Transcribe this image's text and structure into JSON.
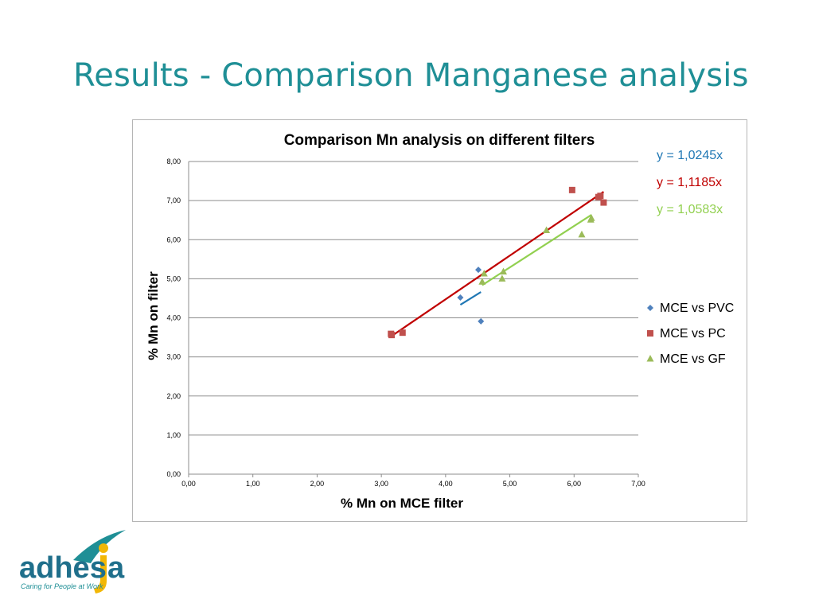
{
  "slide": {
    "title": "Results - Comparison Manganese analysis"
  },
  "colors": {
    "title": "#1f8f96",
    "series": [
      "#4f81bd",
      "#c0504d",
      "#9bbb59"
    ],
    "trendlines": [
      "#1f77b4",
      "#c00000",
      "#92d050"
    ],
    "equations": [
      "#1f77b4",
      "#c00000",
      "#92d050"
    ]
  },
  "chart_data": {
    "type": "scatter",
    "title": "Comparison Mn analysis on different filters",
    "xlabel": "% Mn on MCE filter",
    "ylabel": "% Mn on filter",
    "xlim": [
      0,
      7
    ],
    "ylim": [
      0,
      8
    ],
    "x_ticks": [
      "0,00",
      "1,00",
      "2,00",
      "3,00",
      "4,00",
      "5,00",
      "6,00",
      "7,00"
    ],
    "y_ticks": [
      "0,00",
      "1,00",
      "2,00",
      "3,00",
      "4,00",
      "5,00",
      "6,00",
      "7,00",
      "8,00"
    ],
    "grid": "horizontal",
    "legend_position": "right",
    "series": [
      {
        "name": "MCE vs PVC",
        "marker": "diamond",
        "points": [
          [
            4.23,
            4.52
          ],
          [
            4.51,
            5.23
          ],
          [
            4.55,
            3.91
          ]
        ],
        "trendline": {
          "slope": 1.0245,
          "x_range": [
            4.23,
            4.55
          ],
          "equation": "y = 1,0245x"
        }
      },
      {
        "name": "MCE vs PC",
        "marker": "square",
        "points": [
          [
            3.15,
            3.59
          ],
          [
            3.16,
            3.56
          ],
          [
            3.33,
            3.62
          ],
          [
            5.97,
            7.27
          ],
          [
            6.38,
            7.09
          ],
          [
            6.41,
            7.12
          ],
          [
            6.46,
            6.95
          ]
        ],
        "trendline": {
          "slope": 1.1185,
          "x_range": [
            3.15,
            6.46
          ],
          "equation": "y = 1,1185x"
        }
      },
      {
        "name": "MCE vs GF",
        "marker": "triangle",
        "points": [
          [
            4.57,
            4.92
          ],
          [
            4.6,
            5.13
          ],
          [
            4.88,
            5.0
          ],
          [
            4.9,
            5.18
          ],
          [
            5.57,
            6.24
          ],
          [
            6.12,
            6.13
          ],
          [
            6.26,
            6.51
          ],
          [
            6.27,
            6.55
          ]
        ],
        "trendline": {
          "slope": 1.0583,
          "x_range": [
            4.57,
            6.27
          ],
          "equation": "y = 1,0583x"
        }
      }
    ]
  },
  "logo": {
    "brand": "adhesia",
    "tagline": "Caring for People at Work"
  }
}
